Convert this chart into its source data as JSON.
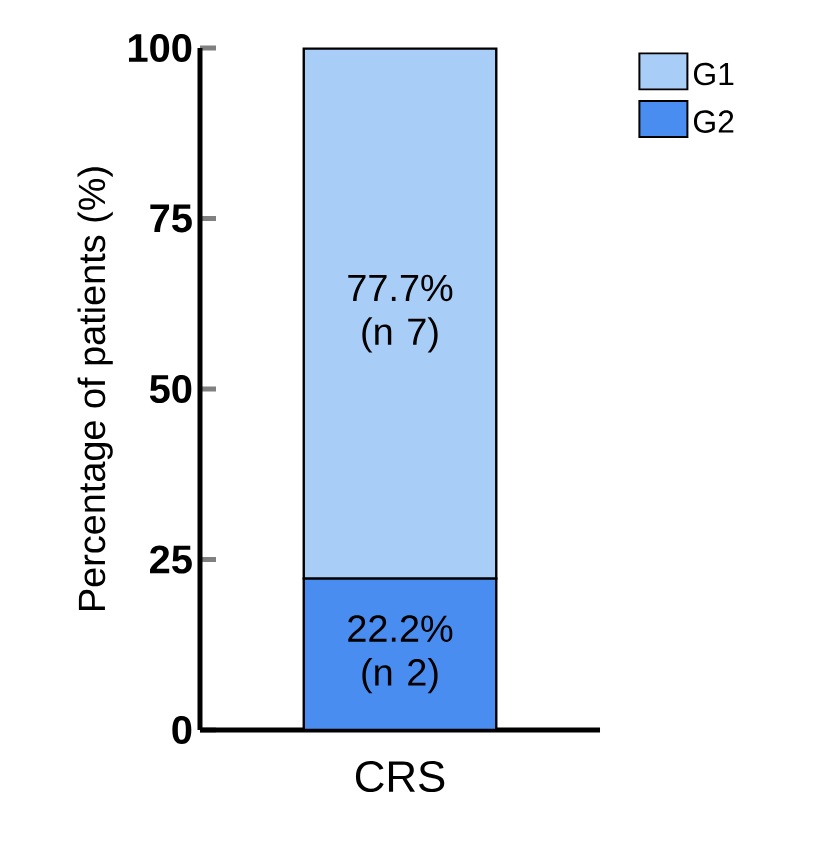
{
  "chart_data": {
    "type": "bar",
    "stacked": true,
    "categories": [
      "CRS"
    ],
    "ylabel": "Percentage of patients (%)",
    "ylim": [
      0,
      100
    ],
    "yticks": [
      0,
      25,
      50,
      75,
      100
    ],
    "legend": "top right",
    "grid": false,
    "series": [
      {
        "name": "G2",
        "color": "#4a8df0",
        "values": [
          22.2
        ],
        "value_labels": [
          "22.2% (n 2)"
        ]
      },
      {
        "name": "G1",
        "color": "#a8cdf6",
        "values": [
          77.7
        ],
        "value_labels": [
          "77.7% (n 7)"
        ]
      }
    ]
  }
}
